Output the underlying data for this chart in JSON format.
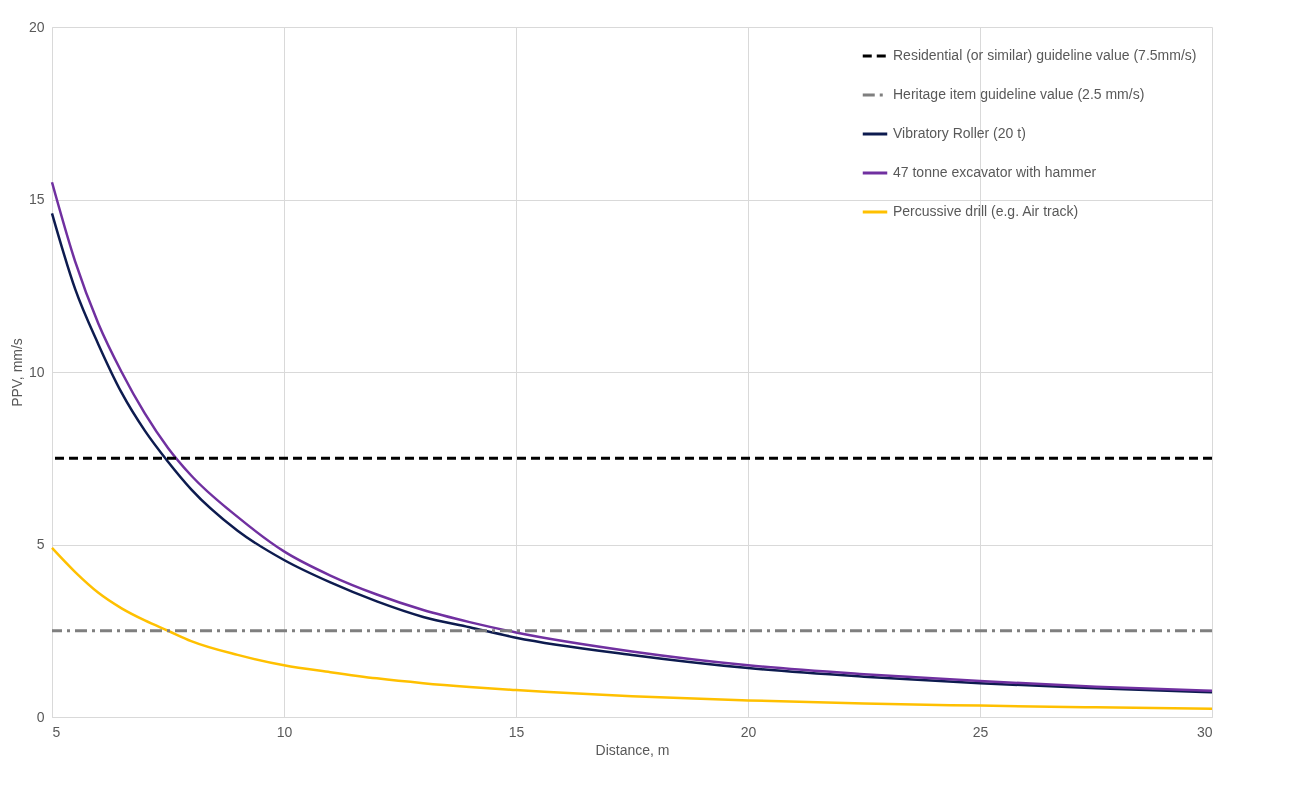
{
  "chart_data": {
    "type": "line",
    "xlabel": "Distance, m",
    "ylabel": "PPV, mm/s",
    "x": [
      5,
      5.5,
      6,
      6.5,
      7,
      7.5,
      8,
      9,
      10,
      11,
      12,
      13,
      14,
      15,
      17.5,
      20,
      22.5,
      25,
      27.5,
      30
    ],
    "series": [
      {
        "name": "Vibratory Roller (20 t)",
        "color": "#0d1b4f",
        "values": [
          14.6,
          12.4,
          10.8,
          9.4,
          8.3,
          7.4,
          6.6,
          5.4,
          4.55,
          3.9,
          3.35,
          2.9,
          2.6,
          2.3,
          1.8,
          1.42,
          1.17,
          0.98,
          0.83,
          0.72
        ]
      },
      {
        "name": "47 tonne excavator with hammer",
        "color": "#7030a0",
        "values": [
          15.5,
          13.2,
          11.4,
          10.0,
          8.8,
          7.8,
          7.0,
          5.8,
          4.8,
          4.1,
          3.55,
          3.1,
          2.75,
          2.45,
          1.9,
          1.5,
          1.24,
          1.04,
          0.88,
          0.76
        ]
      },
      {
        "name": "Percussive drill (e.g. Air track)",
        "color": "#ffc000",
        "values": [
          4.9,
          4.2,
          3.6,
          3.15,
          2.8,
          2.5,
          2.2,
          1.8,
          1.5,
          1.3,
          1.12,
          0.98,
          0.87,
          0.78,
          0.6,
          0.48,
          0.39,
          0.33,
          0.28,
          0.24
        ]
      }
    ],
    "ref_lines": [
      {
        "axis": "y",
        "value": 7.5,
        "label": "Residential (or similar) guideline value (7.5mm/s)",
        "color": "#000000",
        "line_style": "dashed"
      },
      {
        "axis": "y",
        "value": 2.5,
        "label": "Heritage item guideline value (2.5 mm/s)",
        "color": "#7f7f7f",
        "line_style": "dashdot"
      }
    ],
    "xlim": [
      5,
      30
    ],
    "xticks": [
      5,
      10,
      15,
      20,
      25,
      30
    ],
    "ylim": [
      0,
      20
    ],
    "yticks": [
      0,
      5,
      10,
      15,
      20
    ],
    "grid": true,
    "legend": "top right",
    "line_style": "solid",
    "marker": "none"
  }
}
